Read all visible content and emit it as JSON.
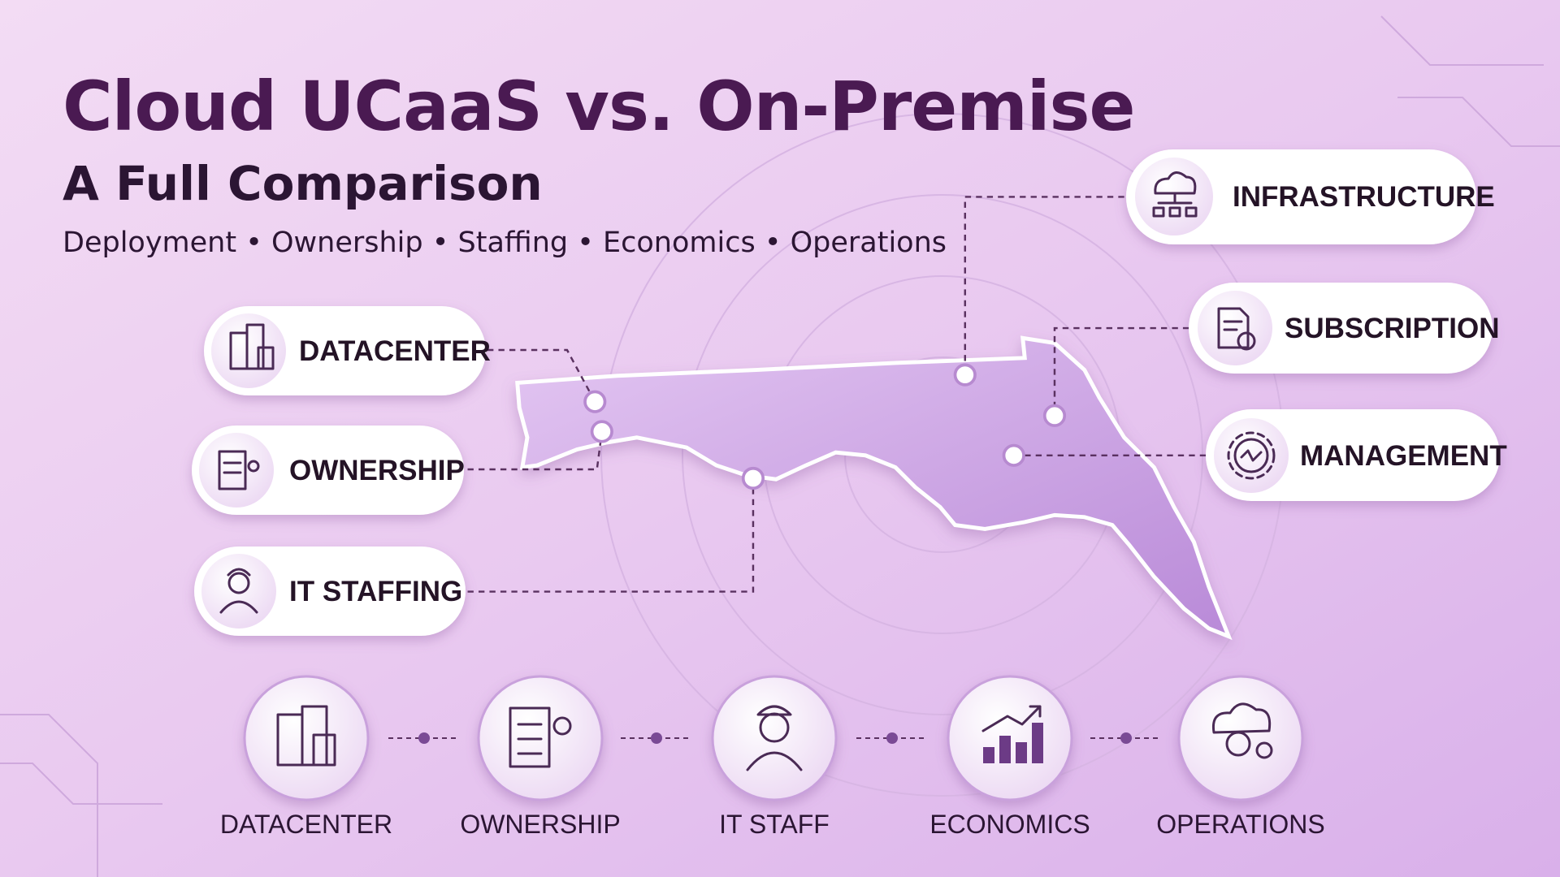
{
  "header": {
    "title": "Cloud UCaaS vs. On-Premise",
    "subtitle": "A Full Comparison",
    "topics": "Deployment • Ownership • Staffing • Economics • Operations"
  },
  "left_items": [
    {
      "label": "DATACENTER"
    },
    {
      "label": "OWNERSHIP"
    },
    {
      "label": "IT STAFFING"
    }
  ],
  "right_items": [
    {
      "label": "INFRASTRUCTURE"
    },
    {
      "label": "SUBSCRIPTION"
    },
    {
      "label": "MANAGEMENT"
    }
  ],
  "bottom_items": [
    {
      "label": "DATACENTER"
    },
    {
      "label": "OWNERSHIP"
    },
    {
      "label": "IT STAFF"
    },
    {
      "label": "ECONOMICS"
    },
    {
      "label": "OPERATIONS"
    }
  ]
}
